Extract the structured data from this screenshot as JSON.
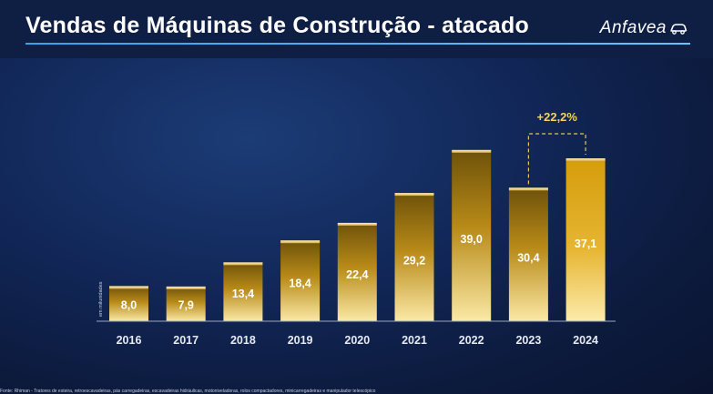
{
  "header": {
    "title": "Vendas de Máquinas de Construção - atacado",
    "brand": "Anfavea"
  },
  "chart_data": {
    "type": "bar",
    "categories": [
      "2016",
      "2017",
      "2018",
      "2019",
      "2020",
      "2021",
      "2022",
      "2023",
      "2024"
    ],
    "values": [
      8.0,
      7.9,
      13.4,
      18.4,
      22.4,
      29.2,
      39.0,
      30.4,
      37.1
    ],
    "value_labels": [
      "8,0",
      "7,9",
      "13,4",
      "18,4",
      "22,4",
      "29,2",
      "39,0",
      "30,4",
      "37,1"
    ],
    "title": "",
    "xlabel": "",
    "ylabel": "em milunidades",
    "ylim": [
      0,
      40
    ],
    "grid": false,
    "legend": "none",
    "annotation": {
      "text": "+22,2%",
      "from": "2023",
      "to": "2024"
    },
    "colors": {
      "bar_dark": "#7a5c0a",
      "bar_mid": "#c79a1d",
      "bar_light": "#fbe7a0",
      "last_bar": "#e0aa12",
      "label_text": "#ffffff",
      "annotation": "#f3d266"
    }
  },
  "footnote": "Fonte: Rhiman - Tratores de esteira, retroescavadeiras, pás carregadeiras, escavadeiras hidráulicas, motoniveladoras, rolos compactadores, minicarregadeiras e manipulador telescópico"
}
